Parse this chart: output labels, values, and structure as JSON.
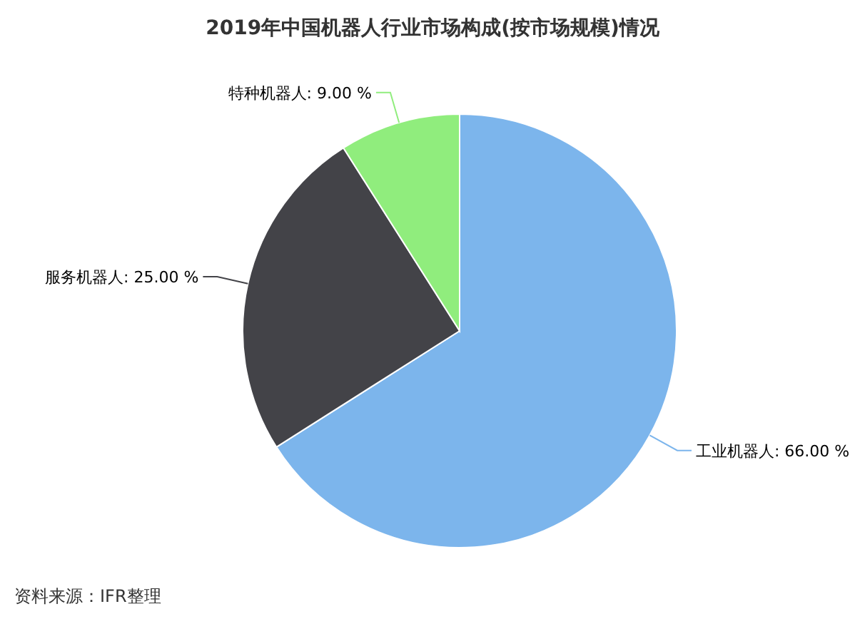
{
  "chart_data": {
    "type": "pie",
    "title": "2019年中国机器人行业市场构成(按市场规模)情况",
    "categories": [
      "工业机器人",
      "服务机器人",
      "特种机器人"
    ],
    "values": [
      66,
      25,
      9
    ],
    "value_labels": [
      "66.00 %",
      "25.00 %",
      "9.00 %"
    ],
    "colors": [
      "#7cb5ec",
      "#434348",
      "#90ed7d"
    ],
    "annotations": [
      "资料来源：IFR整理"
    ]
  }
}
